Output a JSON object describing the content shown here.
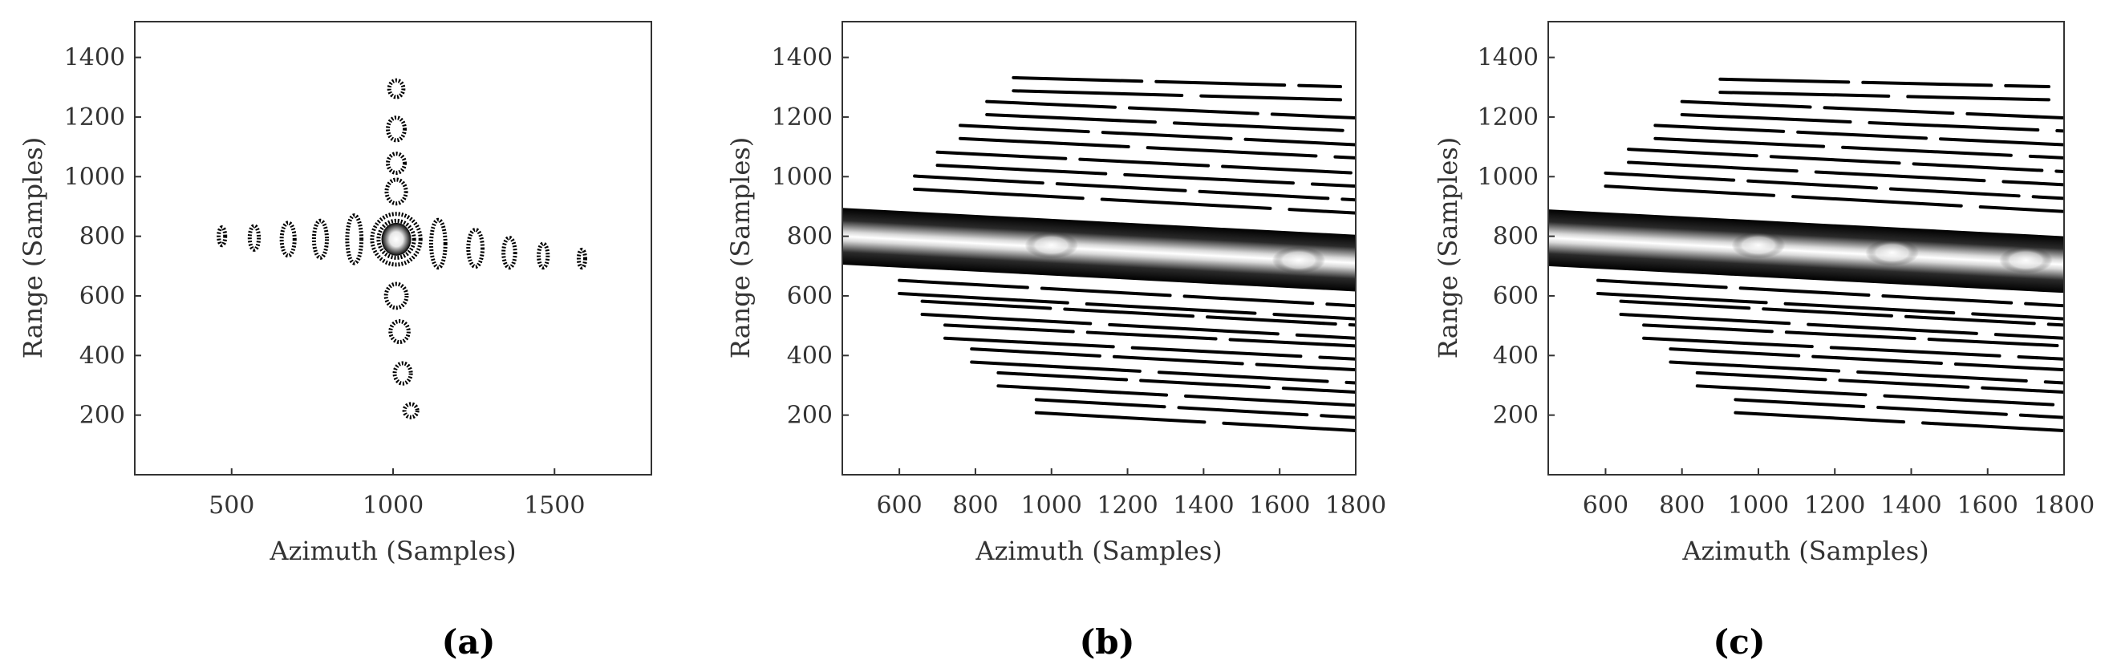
{
  "chart_data": [
    {
      "type": "contour",
      "panel_label": "(a)",
      "xlabel": "Azimuth (Samples)",
      "ylabel": "Range (Samples)",
      "xlim": [
        200,
        1800
      ],
      "ylim": [
        0,
        1520
      ],
      "xticks": [
        500,
        1000,
        1500
      ],
      "yticks": [
        200,
        400,
        600,
        800,
        1000,
        1200,
        1400
      ],
      "peak": {
        "x": 1010,
        "y": 790
      },
      "contours": [
        {
          "x": 1010,
          "y": 790,
          "rx": 75,
          "ry": 85
        },
        {
          "x": 1010,
          "y": 790,
          "rx": 55,
          "ry": 62
        },
        {
          "x": 1010,
          "y": 790,
          "rx": 35,
          "ry": 40
        },
        {
          "x": 1010,
          "y": 1295,
          "rx": 22,
          "ry": 28
        },
        {
          "x": 1010,
          "y": 1160,
          "rx": 26,
          "ry": 38
        },
        {
          "x": 1010,
          "y": 1045,
          "rx": 26,
          "ry": 32
        },
        {
          "x": 1010,
          "y": 950,
          "rx": 30,
          "ry": 40
        },
        {
          "x": 1010,
          "y": 600,
          "rx": 32,
          "ry": 40
        },
        {
          "x": 1020,
          "y": 480,
          "rx": 28,
          "ry": 35
        },
        {
          "x": 1030,
          "y": 340,
          "rx": 25,
          "ry": 34
        },
        {
          "x": 1055,
          "y": 215,
          "rx": 20,
          "ry": 22
        },
        {
          "x": 470,
          "y": 800,
          "rx": 10,
          "ry": 30
        },
        {
          "x": 570,
          "y": 795,
          "rx": 14,
          "ry": 40
        },
        {
          "x": 675,
          "y": 790,
          "rx": 20,
          "ry": 55
        },
        {
          "x": 775,
          "y": 790,
          "rx": 20,
          "ry": 62
        },
        {
          "x": 880,
          "y": 790,
          "rx": 22,
          "ry": 80
        },
        {
          "x": 1140,
          "y": 775,
          "rx": 22,
          "ry": 80
        },
        {
          "x": 1255,
          "y": 760,
          "rx": 22,
          "ry": 62
        },
        {
          "x": 1360,
          "y": 745,
          "rx": 18,
          "ry": 50
        },
        {
          "x": 1465,
          "y": 735,
          "rx": 14,
          "ry": 40
        },
        {
          "x": 1585,
          "y": 725,
          "rx": 10,
          "ry": 30
        }
      ]
    },
    {
      "type": "contour",
      "panel_label": "(b)",
      "xlabel": "Azimuth (Samples)",
      "ylabel": "Range (Samples)",
      "xlim": [
        450,
        1800
      ],
      "ylim": [
        0,
        1520
      ],
      "xticks": [
        600,
        800,
        1000,
        1200,
        1400,
        1600,
        1800
      ],
      "yticks": [
        200,
        400,
        600,
        800,
        1000,
        1200,
        1400
      ],
      "band": {
        "x_start": 450,
        "x_end": 1800,
        "y_start": 800,
        "y_end": 710,
        "half_width": 95
      },
      "peaks": [
        {
          "x": 1000,
          "y": 770
        },
        {
          "x": 1650,
          "y": 720
        }
      ],
      "streaks": [
        {
          "x0": 640,
          "y0": 980,
          "x1": 1800,
          "y1": 900
        },
        {
          "x0": 700,
          "y0": 1060,
          "x1": 1800,
          "y1": 990
        },
        {
          "x0": 760,
          "y0": 1150,
          "x1": 1800,
          "y1": 1085
        },
        {
          "x0": 830,
          "y0": 1230,
          "x1": 1800,
          "y1": 1175
        },
        {
          "x0": 900,
          "y0": 1310,
          "x1": 1760,
          "y1": 1280
        },
        {
          "x0": 600,
          "y0": 630,
          "x1": 1800,
          "y1": 545
        },
        {
          "x0": 660,
          "y0": 560,
          "x1": 1800,
          "y1": 480
        },
        {
          "x0": 720,
          "y0": 480,
          "x1": 1800,
          "y1": 410
        },
        {
          "x0": 790,
          "y0": 400,
          "x1": 1800,
          "y1": 330
        },
        {
          "x0": 860,
          "y0": 320,
          "x1": 1800,
          "y1": 255
        },
        {
          "x0": 960,
          "y0": 230,
          "x1": 1800,
          "y1": 170
        }
      ]
    },
    {
      "type": "contour",
      "panel_label": "(c)",
      "xlabel": "Azimuth (Samples)",
      "ylabel": "Range (Samples)",
      "xlim": [
        450,
        1800
      ],
      "ylim": [
        0,
        1520
      ],
      "xticks": [
        600,
        800,
        1000,
        1200,
        1400,
        1600,
        1800
      ],
      "yticks": [
        200,
        400,
        600,
        800,
        1000,
        1200,
        1400
      ],
      "band": {
        "x_start": 450,
        "x_end": 1800,
        "y_start": 795,
        "y_end": 705,
        "half_width": 95
      },
      "peaks": [
        {
          "x": 1000,
          "y": 770
        },
        {
          "x": 1350,
          "y": 745
        },
        {
          "x": 1700,
          "y": 720
        }
      ],
      "streaks": [
        {
          "x0": 600,
          "y0": 990,
          "x1": 1800,
          "y1": 905
        },
        {
          "x0": 660,
          "y0": 1070,
          "x1": 1800,
          "y1": 995
        },
        {
          "x0": 730,
          "y0": 1150,
          "x1": 1800,
          "y1": 1085
        },
        {
          "x0": 800,
          "y0": 1230,
          "x1": 1800,
          "y1": 1175
        },
        {
          "x0": 900,
          "y0": 1305,
          "x1": 1760,
          "y1": 1280
        },
        {
          "x0": 580,
          "y0": 630,
          "x1": 1800,
          "y1": 545
        },
        {
          "x0": 640,
          "y0": 560,
          "x1": 1800,
          "y1": 480
        },
        {
          "x0": 700,
          "y0": 480,
          "x1": 1800,
          "y1": 410
        },
        {
          "x0": 770,
          "y0": 400,
          "x1": 1800,
          "y1": 330
        },
        {
          "x0": 840,
          "y0": 320,
          "x1": 1800,
          "y1": 255
        },
        {
          "x0": 940,
          "y0": 230,
          "x1": 1800,
          "y1": 170
        }
      ]
    }
  ]
}
